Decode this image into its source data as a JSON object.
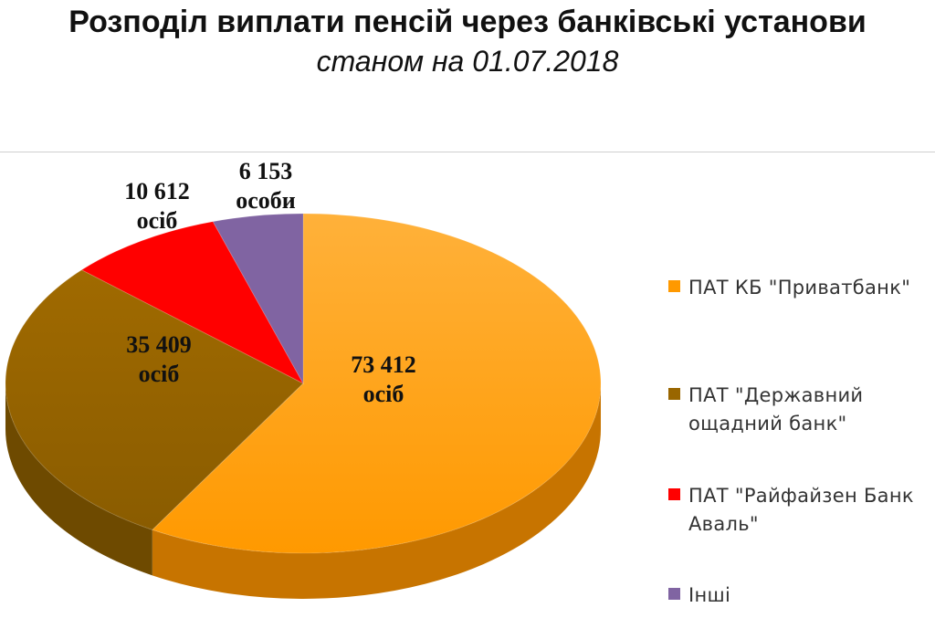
{
  "chart_data": {
    "type": "pie",
    "title": "Розподіл виплати пенсій через банківські установи",
    "subtitle": "станом на 01.07.2018",
    "legend_position": "right",
    "slices": [
      {
        "name": "ПАТ  КБ \"Приватбанк\"",
        "value": 73412,
        "label": "73 412\nосіб",
        "color": "#ff9900"
      },
      {
        "name": "ПАТ \"Державний ощадний банк\"",
        "value": 35409,
        "label": "35 409\nосіб",
        "color": "#996600"
      },
      {
        "name": "ПАТ \"Райфайзен Банк Аваль\"",
        "value": 10612,
        "label": "10 612\nосіб",
        "color": "#ff0000"
      },
      {
        "name": "Інші",
        "value": 6153,
        "label": "6 153\nособи",
        "color": "#8064a2"
      }
    ]
  }
}
